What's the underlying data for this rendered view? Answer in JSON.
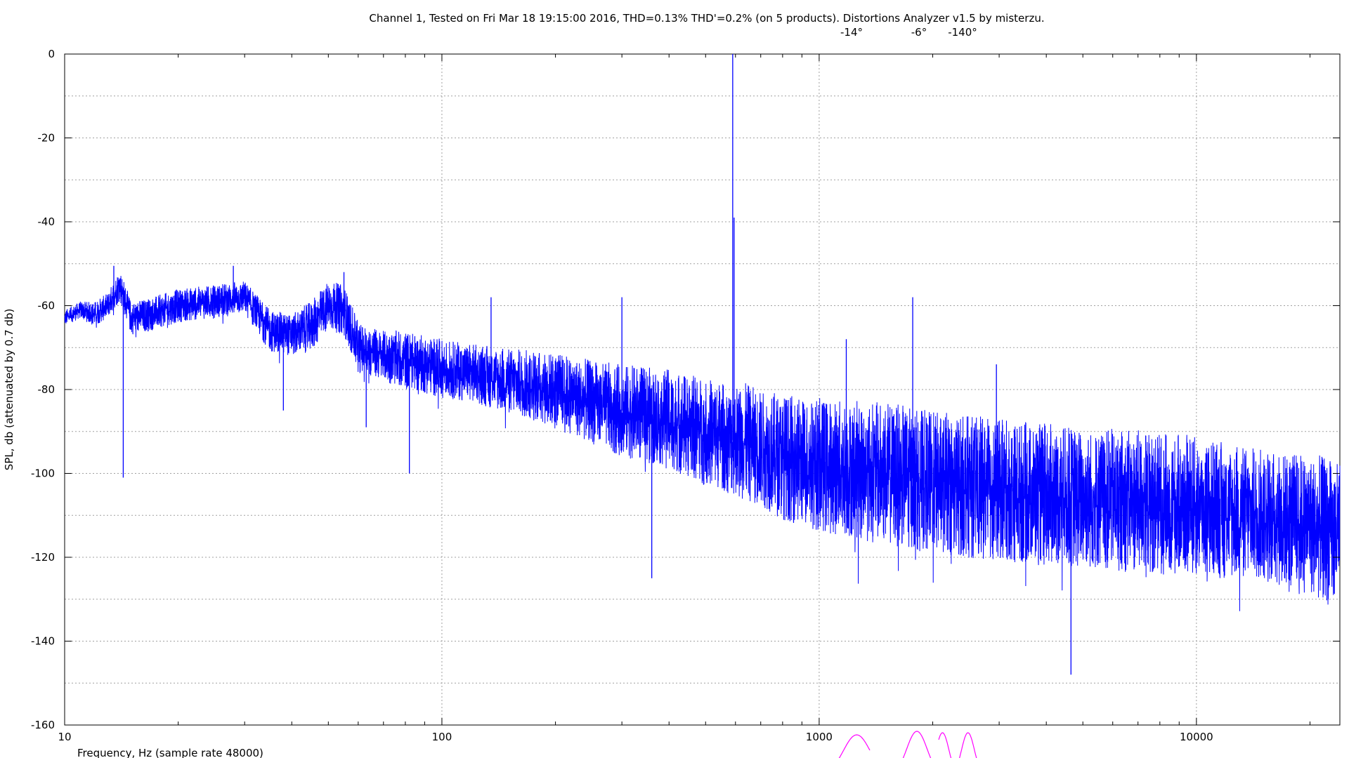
{
  "chart_data": {
    "type": "line",
    "title": "Channel 1, Tested on Fri Mar 18 19:15:00 2016, THD=0.13% THD'=0.2% (on 5 products). Distortions Analyzer v1.5 by misterzu.",
    "xlabel": "Frequency, Hz (sample rate 48000)",
    "ylabel": "SPL, db (attenuated by 0.7 db)",
    "x_scale": "log",
    "xlim": [
      10,
      24000
    ],
    "ylim": [
      -160,
      0
    ],
    "grid": true,
    "x_ticks": [
      "10",
      "100",
      "1000",
      "10000"
    ],
    "y_ticks": [
      "0",
      "-20",
      "-40",
      "-60",
      "-80",
      "-100",
      "-120",
      "-140",
      "-160"
    ],
    "series_color": "#0000ff",
    "phase_color": "#ff00ff",
    "envelope": {
      "freq_hz": [
        10,
        11,
        12,
        13,
        14,
        15,
        17,
        20,
        25,
        30,
        35,
        40,
        45,
        50,
        55,
        60,
        70,
        80,
        90,
        100,
        120,
        150,
        200,
        250,
        300,
        400,
        500,
        550,
        580,
        620,
        700,
        800,
        1000,
        1500,
        2000,
        3000,
        5000,
        8000,
        10000,
        15000,
        20000,
        24000
      ],
      "center_db": [
        -63,
        -61,
        -62,
        -60,
        -55,
        -63,
        -62,
        -60,
        -59,
        -58,
        -66,
        -67,
        -65,
        -60,
        -61,
        -70,
        -72,
        -73,
        -74,
        -75,
        -76,
        -78,
        -80,
        -83,
        -85,
        -87,
        -90,
        -91,
        -92,
        -92,
        -94,
        -96,
        -98,
        -100,
        -102,
        -104,
        -106,
        -107,
        -108,
        -110,
        -112,
        -115
      ],
      "spread_db": [
        2,
        2,
        3,
        3,
        4,
        4,
        4,
        4,
        4,
        4,
        5,
        5,
        6,
        6,
        6,
        6,
        6,
        7,
        7,
        7,
        7,
        8,
        9,
        10,
        11,
        12,
        13,
        13,
        13,
        14,
        14,
        15,
        16,
        17,
        17,
        17,
        17,
        17,
        17,
        16,
        17,
        18
      ]
    },
    "peaks": [
      {
        "freq_hz": 13.5,
        "db": -50.5
      },
      {
        "freq_hz": 14.3,
        "db": -101
      },
      {
        "freq_hz": 28,
        "db": -50.5
      },
      {
        "freq_hz": 38,
        "db": -85
      },
      {
        "freq_hz": 55,
        "db": -52
      },
      {
        "freq_hz": 63,
        "db": -89
      },
      {
        "freq_hz": 82,
        "db": -100
      },
      {
        "freq_hz": 135,
        "db": -58
      },
      {
        "freq_hz": 300,
        "db": -58
      },
      {
        "freq_hz": 360,
        "db": -125
      },
      {
        "freq_hz": 590,
        "db": 0
      },
      {
        "freq_hz": 595,
        "db": -39
      },
      {
        "freq_hz": 1180,
        "db": -68
      },
      {
        "freq_hz": 1770,
        "db": -58
      },
      {
        "freq_hz": 2950,
        "db": -74
      },
      {
        "freq_hz": 4650,
        "db": -148
      }
    ],
    "harmonic_phases": [
      "-14°",
      "-6°",
      "-140°"
    ]
  }
}
